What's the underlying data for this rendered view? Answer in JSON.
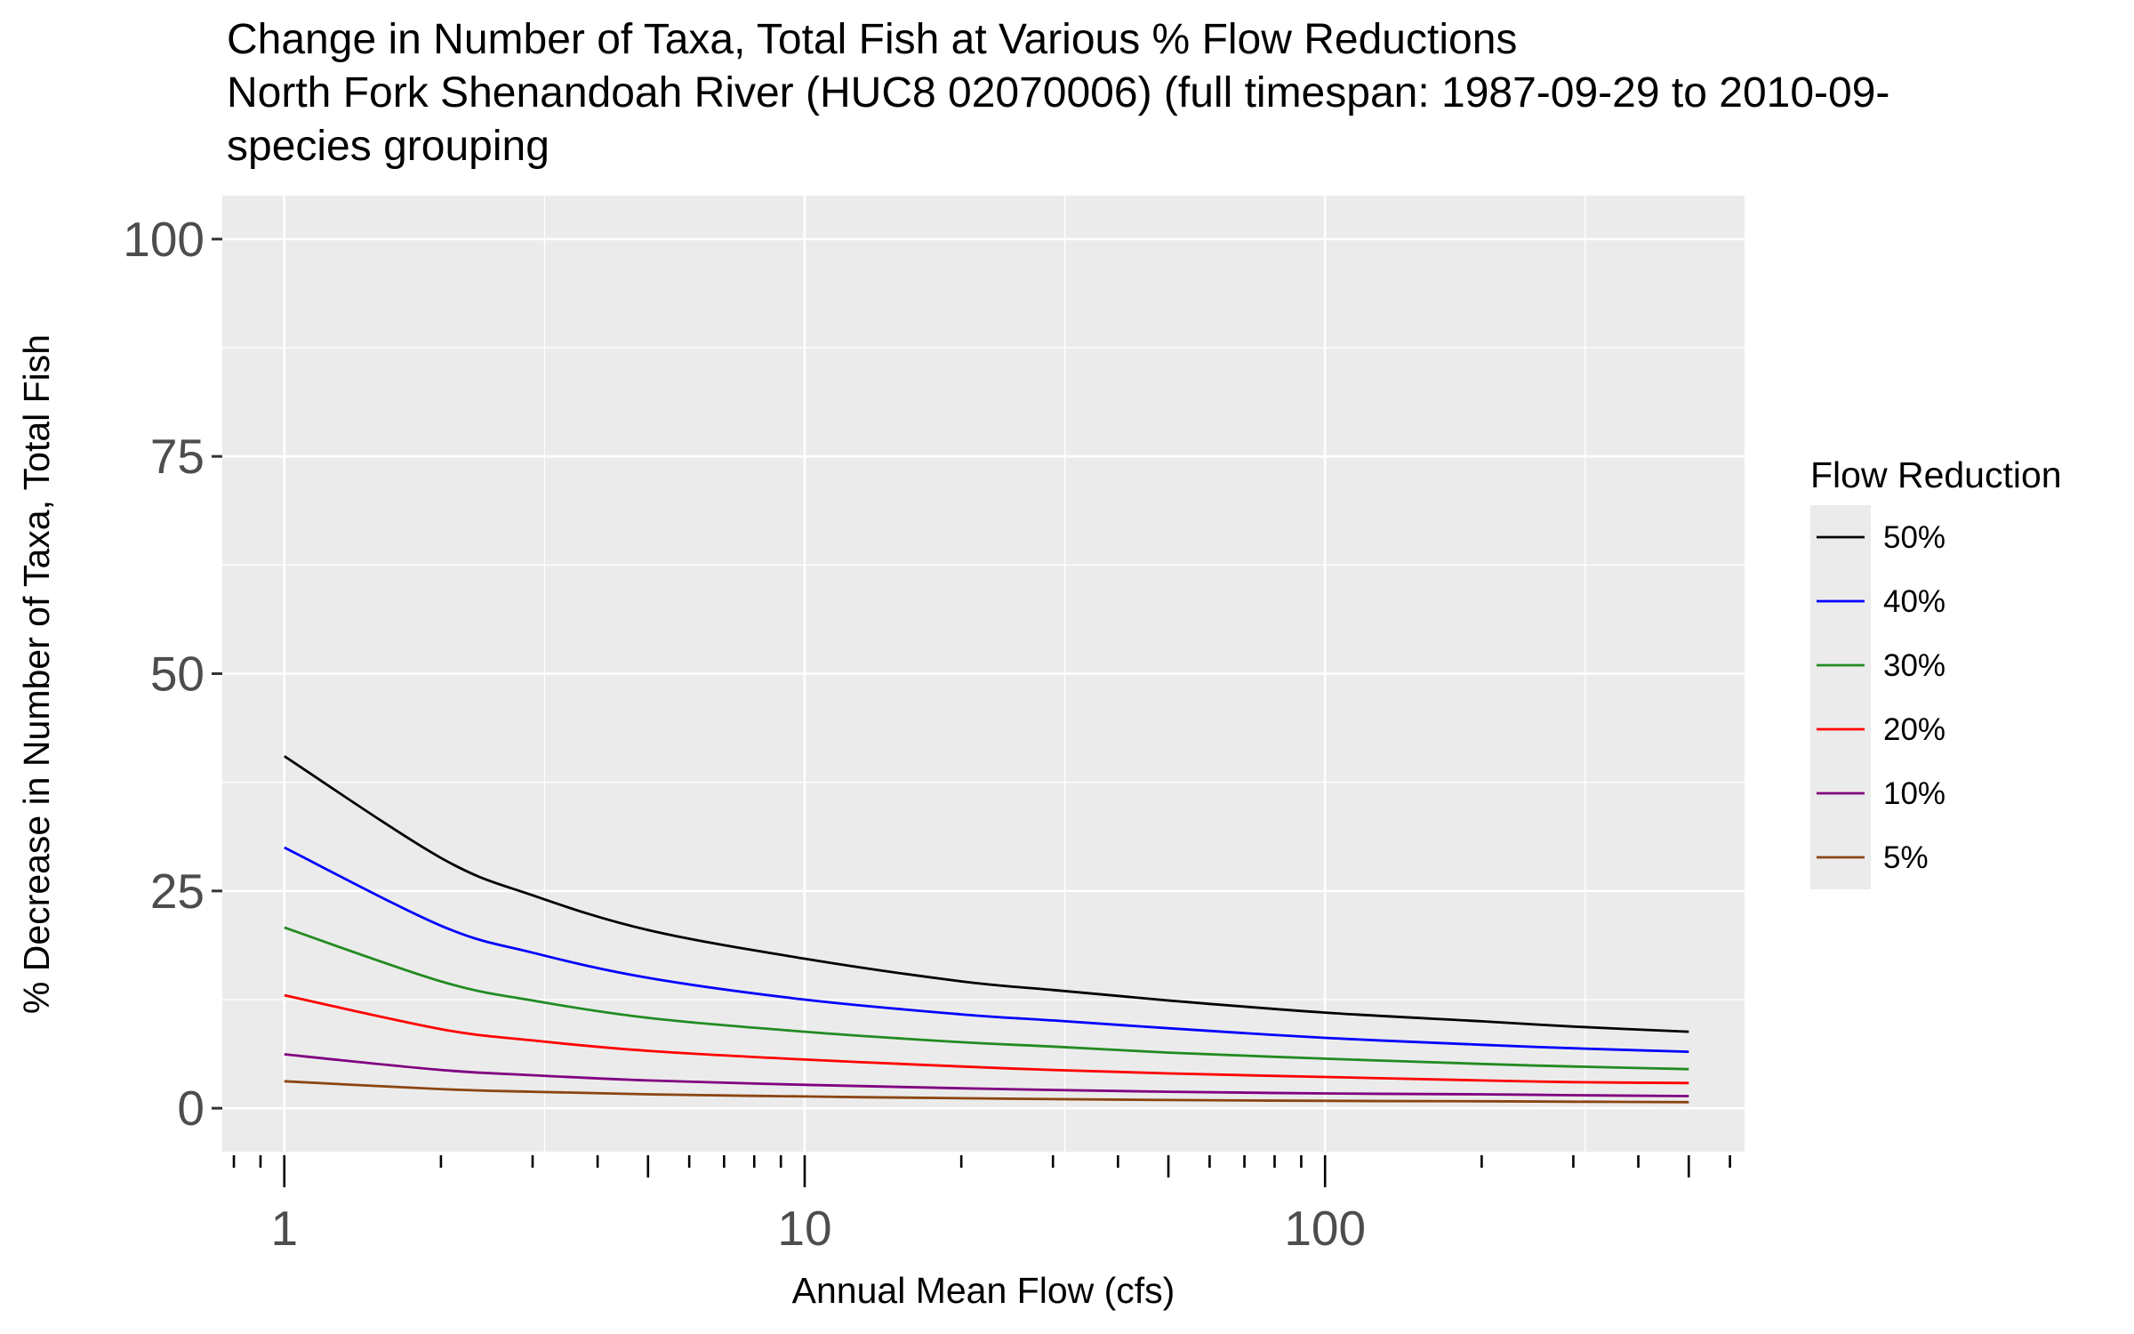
{
  "chart_data": {
    "type": "line",
    "title": [
      "Change in Number of Taxa, Total Fish at Various % Flow Reductions",
      "North Fork Shenandoah River (HUC8 02070006) (full timespan: 1987-09-29 to 2010-09-",
      "species grouping"
    ],
    "xlabel": "Annual Mean Flow (cfs)",
    "ylabel": "% Decrease in Number of Taxa, Total Fish",
    "x_scale": "log10",
    "xlim": [
      0.76,
      640
    ],
    "ylim": [
      -5,
      105
    ],
    "x_ticks": [
      1,
      10,
      100
    ],
    "x_tick_labels": [
      "1",
      "10",
      "100"
    ],
    "y_ticks": [
      0,
      25,
      50,
      75,
      100
    ],
    "y_tick_labels": [
      "0",
      "25",
      "50",
      "75",
      "100"
    ],
    "grid": true,
    "legend": {
      "title": "Flow Reduction",
      "position": "right"
    },
    "series": [
      {
        "name": "50%",
        "color": "#000000",
        "x": [
          1,
          2,
          3,
          5,
          10,
          20,
          30,
          50,
          100,
          200,
          300,
          500
        ],
        "y": [
          40.5,
          28.8,
          24.5,
          20.5,
          17.2,
          14.6,
          13.6,
          12.4,
          11.0,
          10.0,
          9.4,
          8.8
        ]
      },
      {
        "name": "40%",
        "color": "#0000ff",
        "x": [
          1,
          2,
          3,
          5,
          10,
          20,
          30,
          50,
          100,
          200,
          300,
          500
        ],
        "y": [
          30.0,
          21.0,
          17.9,
          15.0,
          12.5,
          10.8,
          10.1,
          9.2,
          8.1,
          7.3,
          6.9,
          6.5
        ]
      },
      {
        "name": "30%",
        "color": "#228b22",
        "x": [
          1,
          2,
          3,
          5,
          10,
          20,
          30,
          50,
          100,
          200,
          300,
          500
        ],
        "y": [
          20.8,
          14.6,
          12.4,
          10.4,
          8.8,
          7.6,
          7.1,
          6.4,
          5.7,
          5.1,
          4.8,
          4.5
        ]
      },
      {
        "name": "20%",
        "color": "#ff0000",
        "x": [
          1,
          2,
          3,
          5,
          10,
          20,
          30,
          50,
          100,
          200,
          300,
          500
        ],
        "y": [
          13.0,
          9.1,
          7.8,
          6.6,
          5.6,
          4.8,
          4.4,
          4.0,
          3.6,
          3.2,
          3.0,
          2.9
        ]
      },
      {
        "name": "10%",
        "color": "#800080",
        "x": [
          1,
          2,
          3,
          5,
          10,
          20,
          30,
          50,
          100,
          200,
          300,
          500
        ],
        "y": [
          6.2,
          4.4,
          3.8,
          3.2,
          2.7,
          2.3,
          2.1,
          1.9,
          1.7,
          1.6,
          1.5,
          1.4
        ]
      },
      {
        "name": "5%",
        "color": "#8b4513",
        "x": [
          1,
          2,
          3,
          5,
          10,
          20,
          30,
          50,
          100,
          200,
          300,
          500
        ],
        "y": [
          3.1,
          2.2,
          1.9,
          1.6,
          1.35,
          1.15,
          1.05,
          0.95,
          0.85,
          0.8,
          0.75,
          0.7
        ]
      }
    ]
  }
}
